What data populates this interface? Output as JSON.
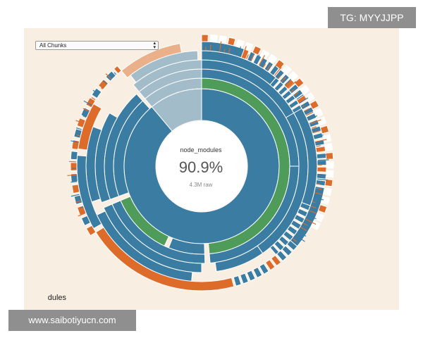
{
  "chunk_selector": {
    "value": "All Chunks"
  },
  "center": {
    "name": "node_modules",
    "percent": "90.9%",
    "size": "4.3M raw"
  },
  "bottom_label": "dules",
  "watermarks": {
    "top_right": "TG: MYYJJPP",
    "bottom_left": "www.saibotiyucn.com"
  },
  "colors": {
    "panel_bg": "#f8eee2",
    "blue": "#3b7ca3",
    "green": "#4f9c5a",
    "orange": "#dd6b2a",
    "light_blue": "#a3bcca",
    "light_orange": "#eab08a"
  }
}
